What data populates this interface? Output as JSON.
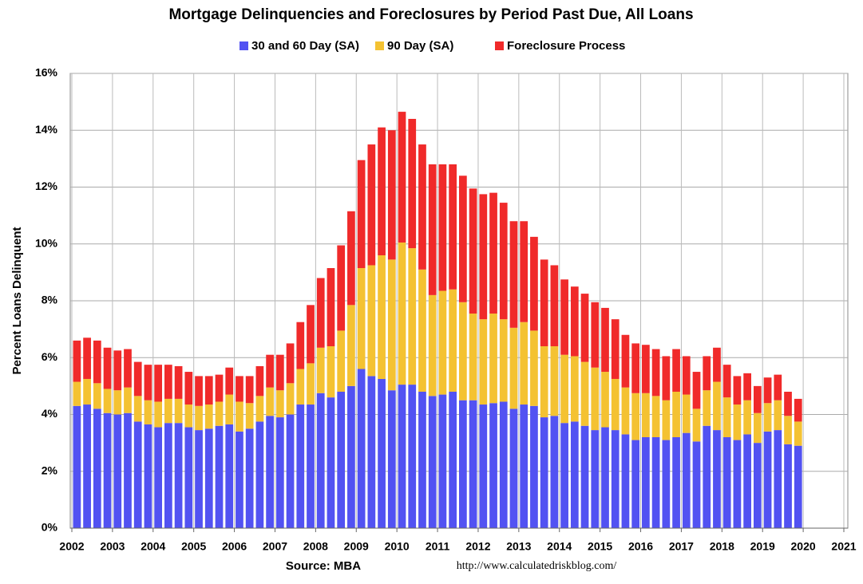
{
  "chart_data": {
    "type": "bar",
    "stacked": true,
    "title": "Mortgage Delinquencies and Foreclosures by Period Past Due, All Loans",
    "ylabel": "Percent Loans Delinquent",
    "source": "Source: MBA",
    "url": "http://www.calculatedriskblog.com/",
    "grid": true,
    "legend": "top",
    "xlim": [
      2002,
      2021
    ],
    "xticks": [
      2002,
      2003,
      2004,
      2005,
      2006,
      2007,
      2008,
      2009,
      2010,
      2011,
      2012,
      2013,
      2014,
      2015,
      2016,
      2017,
      2018,
      2019,
      2020,
      2021
    ],
    "ylim": [
      0,
      16
    ],
    "yticks": [
      {
        "value": 0,
        "label": "0%"
      },
      {
        "value": 2,
        "label": "2%"
      },
      {
        "value": 4,
        "label": "4%"
      },
      {
        "value": 6,
        "label": "6%"
      },
      {
        "value": 8,
        "label": "8%"
      },
      {
        "value": 10,
        "label": "10%"
      },
      {
        "value": 12,
        "label": "12%"
      },
      {
        "value": 14,
        "label": "14%"
      },
      {
        "value": 16,
        "label": "16%"
      }
    ],
    "x": [
      2002,
      2002.25,
      2002.5,
      2002.75,
      2003,
      2003.25,
      2003.5,
      2003.75,
      2004,
      2004.25,
      2004.5,
      2004.75,
      2005,
      2005.25,
      2005.5,
      2005.75,
      2006,
      2006.25,
      2006.5,
      2006.75,
      2007,
      2007.25,
      2007.5,
      2007.75,
      2008,
      2008.25,
      2008.5,
      2008.75,
      2009,
      2009.25,
      2009.5,
      2009.75,
      2010,
      2010.25,
      2010.5,
      2010.75,
      2011,
      2011.25,
      2011.5,
      2011.75,
      2012,
      2012.25,
      2012.5,
      2012.75,
      2013,
      2013.25,
      2013.5,
      2013.75,
      2014,
      2014.25,
      2014.5,
      2014.75,
      2015,
      2015.25,
      2015.5,
      2015.75,
      2016,
      2016.25,
      2016.5,
      2016.75,
      2017,
      2017.25,
      2017.5,
      2017.75,
      2018,
      2018.25,
      2018.5,
      2018.75,
      2019,
      2019.25,
      2019.5,
      2019.75
    ],
    "series": [
      {
        "name": "30 and 60 Day (SA)",
        "color": "#5252f2",
        "values": [
          4.3,
          4.35,
          4.2,
          4.05,
          4.0,
          4.05,
          3.75,
          3.65,
          3.55,
          3.7,
          3.7,
          3.55,
          3.45,
          3.5,
          3.6,
          3.65,
          3.4,
          3.5,
          3.75,
          3.95,
          3.9,
          4.0,
          4.35,
          4.35,
          4.75,
          4.6,
          4.8,
          5.0,
          5.6,
          5.35,
          5.25,
          4.85,
          5.05,
          5.05,
          4.8,
          4.65,
          4.7,
          4.8,
          4.5,
          4.5,
          4.35,
          4.4,
          4.45,
          4.2,
          4.35,
          4.3,
          3.9,
          3.95,
          3.7,
          3.75,
          3.6,
          3.45,
          3.55,
          3.45,
          3.3,
          3.1,
          3.2,
          3.2,
          3.1,
          3.2,
          3.35,
          3.05,
          3.6,
          3.45,
          3.2,
          3.1,
          3.3,
          3.0,
          3.4,
          3.45,
          2.95,
          2.9
        ]
      },
      {
        "name": "90 Day (SA)",
        "color": "#f4c232",
        "values": [
          0.85,
          0.9,
          0.9,
          0.85,
          0.85,
          0.9,
          0.9,
          0.85,
          0.9,
          0.85,
          0.85,
          0.8,
          0.85,
          0.85,
          0.85,
          1.05,
          1.05,
          0.9,
          0.9,
          1.0,
          0.95,
          1.1,
          1.25,
          1.45,
          1.6,
          1.8,
          2.15,
          2.85,
          3.55,
          3.9,
          4.35,
          4.6,
          5.0,
          4.8,
          4.3,
          3.55,
          3.65,
          3.6,
          3.45,
          3.05,
          3.0,
          3.15,
          2.9,
          2.85,
          2.9,
          2.65,
          2.5,
          2.45,
          2.4,
          2.3,
          2.25,
          2.2,
          1.95,
          1.8,
          1.65,
          1.65,
          1.55,
          1.45,
          1.4,
          1.6,
          1.35,
          1.15,
          1.25,
          1.7,
          1.4,
          1.25,
          1.2,
          1.05,
          1.0,
          1.05,
          1.0,
          0.85
        ]
      },
      {
        "name": "Foreclosure Process",
        "color": "#f02a2a",
        "values": [
          1.45,
          1.45,
          1.5,
          1.45,
          1.4,
          1.35,
          1.2,
          1.25,
          1.3,
          1.2,
          1.15,
          1.15,
          1.05,
          1.0,
          0.95,
          0.95,
          0.9,
          0.95,
          1.05,
          1.15,
          1.25,
          1.4,
          1.65,
          2.05,
          2.45,
          2.75,
          3.0,
          3.3,
          3.8,
          4.25,
          4.5,
          4.55,
          4.6,
          4.55,
          4.4,
          4.6,
          4.45,
          4.4,
          4.45,
          4.4,
          4.4,
          4.25,
          4.1,
          3.75,
          3.55,
          3.3,
          3.05,
          2.85,
          2.65,
          2.45,
          2.4,
          2.3,
          2.25,
          2.1,
          1.85,
          1.75,
          1.7,
          1.65,
          1.55,
          1.5,
          1.35,
          1.3,
          1.2,
          1.2,
          1.15,
          1.0,
          0.95,
          0.95,
          0.9,
          0.9,
          0.85,
          0.8
        ]
      }
    ]
  }
}
